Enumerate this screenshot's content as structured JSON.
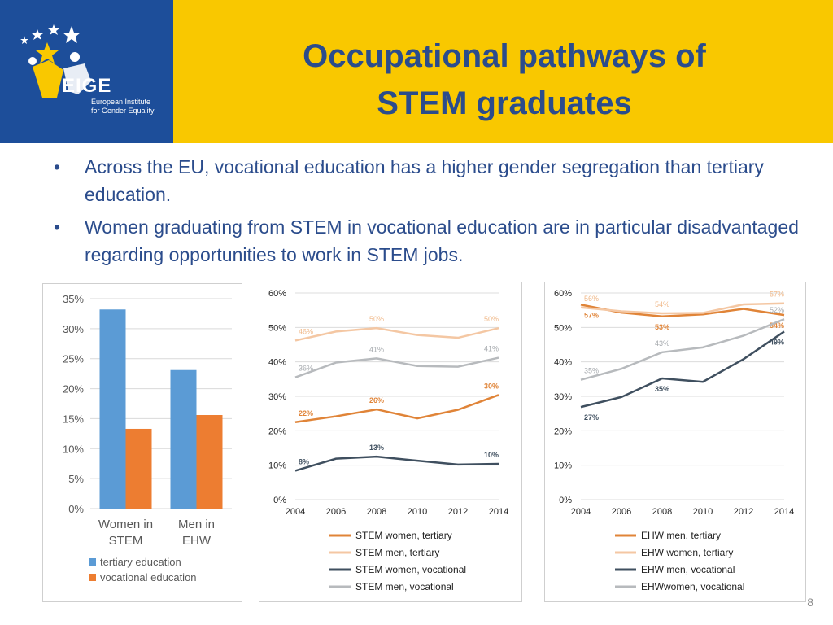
{
  "header": {
    "title_line1": "Occupational pathways of",
    "title_line2": "STEM graduates",
    "logo": {
      "icon": "eige-stars-logo-icon",
      "word": "EIGE",
      "text_line1": "European Institute",
      "text_line2": "for Gender Equality",
      "bg_color": "#1d4e9a"
    },
    "bg_color": "#f9c800"
  },
  "bullets": [
    {
      "text": "Across the EU, vocational education has a higher gender segregation than tertiary education."
    },
    {
      "text": "Women graduating from STEM in vocational education are in particular disadvantaged regarding opportunities to work in STEM jobs."
    }
  ],
  "page_number": "8",
  "chart_data": [
    {
      "type": "bar",
      "categories": [
        "Women in STEM",
        "Men in EHW"
      ],
      "series": [
        {
          "name": "tertiary education",
          "values": [
            33.2,
            23.1
          ],
          "color": "#5b9bd5"
        },
        {
          "name": "vocational education",
          "values": [
            13.3,
            15.6
          ],
          "color": "#ed7d31"
        }
      ],
      "ylim": [
        0,
        35
      ],
      "yticks": [
        "0%",
        "5%",
        "10%",
        "15%",
        "20%",
        "25%",
        "30%",
        "35%"
      ],
      "grid": true,
      "legend": "bottom"
    },
    {
      "type": "line",
      "x": [
        "2004",
        "2006",
        "2008",
        "2010",
        "2012",
        "2014"
      ],
      "series": [
        {
          "name": "STEM women, tertiary",
          "values": [
            22.5,
            24.2,
            26.2,
            23.6,
            26.1,
            30.4
          ],
          "color": "#e08438",
          "labels": [
            {
              "i": 0,
              "text": "22%"
            },
            {
              "i": 2,
              "text": "26%"
            },
            {
              "i": 5,
              "text": "30%"
            }
          ]
        },
        {
          "name": "STEM men, tertiary",
          "values": [
            46.2,
            48.8,
            49.8,
            47.8,
            47.0,
            49.8
          ],
          "color": "#f4c7a3",
          "labels": [
            {
              "i": 0,
              "text": "46%"
            },
            {
              "i": 2,
              "text": "50%"
            },
            {
              "i": 5,
              "text": "50%"
            }
          ]
        },
        {
          "name": "STEM women, vocational",
          "values": [
            8.4,
            11.9,
            12.5,
            11.3,
            10.2,
            10.4
          ],
          "color": "#3f4f5f",
          "labels": [
            {
              "i": 0,
              "text": "8%"
            },
            {
              "i": 2,
              "text": "13%"
            },
            {
              "i": 5,
              "text": "10%"
            }
          ]
        },
        {
          "name": "STEM men, vocational",
          "values": [
            35.5,
            39.8,
            41.0,
            38.8,
            38.6,
            41.2
          ],
          "color": "#b7babd",
          "labels": [
            {
              "i": 0,
              "text": "36%"
            },
            {
              "i": 2,
              "text": "41%"
            },
            {
              "i": 5,
              "text": "41%"
            }
          ]
        }
      ],
      "ylim": [
        0,
        60
      ],
      "yticks": [
        "0%",
        "10%",
        "20%",
        "30%",
        "40%",
        "50%",
        "60%"
      ],
      "grid": true,
      "legend": "bottom"
    },
    {
      "type": "line",
      "x": [
        "2004",
        "2006",
        "2008",
        "2010",
        "2012",
        "2014"
      ],
      "series": [
        {
          "name": "EHW men, tertiary",
          "values": [
            56.6,
            54.3,
            53.2,
            53.8,
            55.4,
            53.6
          ],
          "color": "#e08438",
          "labels": [
            {
              "i": 0,
              "text": "57%"
            },
            {
              "i": 2,
              "text": "53%"
            },
            {
              "i": 5,
              "text": "54%"
            }
          ]
        },
        {
          "name": "EHW women, tertiary",
          "values": [
            55.8,
            54.7,
            54.1,
            54.2,
            56.7,
            57.0
          ],
          "color": "#f4c7a3",
          "labels": [
            {
              "i": 0,
              "text": "56%"
            },
            {
              "i": 2,
              "text": "54%"
            },
            {
              "i": 5,
              "text": "57%"
            }
          ]
        },
        {
          "name": "EHW men, vocational",
          "values": [
            26.9,
            29.8,
            35.2,
            34.2,
            40.8,
            48.8
          ],
          "color": "#3f4f5f",
          "labels": [
            {
              "i": 0,
              "text": "27%"
            },
            {
              "i": 2,
              "text": "35%"
            },
            {
              "i": 5,
              "text": "49%"
            }
          ]
        },
        {
          "name": "EHWwomen, vocational",
          "values": [
            34.8,
            38.0,
            42.8,
            44.2,
            47.6,
            52.4
          ],
          "color": "#b7babd",
          "labels": [
            {
              "i": 0,
              "text": "35%"
            },
            {
              "i": 2,
              "text": "43%"
            },
            {
              "i": 5,
              "text": "52%"
            }
          ]
        }
      ],
      "ylim": [
        0,
        60
      ],
      "yticks": [
        "0%",
        "10%",
        "20%",
        "30%",
        "40%",
        "50%",
        "60%"
      ],
      "grid": true,
      "legend": "bottom"
    }
  ]
}
